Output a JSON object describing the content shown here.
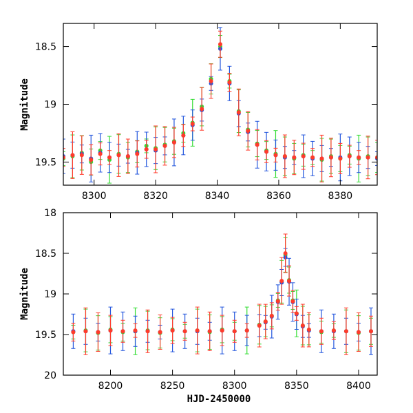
{
  "chart_data": [
    {
      "type": "scatter",
      "title": "",
      "xlabel": "",
      "ylabel": "Magnitude",
      "xlim": [
        8290,
        8392
      ],
      "ylim": [
        19.7,
        18.3
      ],
      "y_inverted": true,
      "x_ticks": [
        8300,
        8320,
        8340,
        8360,
        8380
      ],
      "x_tick_labels": [
        "8300",
        "8320",
        "8340",
        "8360",
        "8380"
      ],
      "y_ticks": [
        18.5,
        19,
        19.5
      ],
      "y_tick_labels": [
        "18.5",
        "19",
        "19.5"
      ],
      "grid": false,
      "legend": "none",
      "error_bars": true,
      "series": [
        {
          "color": "#33dd33",
          "x": [
            8290,
            8293,
            8296,
            8299,
            8302,
            8305,
            8308,
            8311,
            8314,
            8317,
            8320,
            8323,
            8326,
            8329,
            8332,
            8335,
            8338,
            8341,
            8344,
            8347,
            8350,
            8353,
            8356,
            8359,
            8362,
            8365,
            8368,
            8371,
            8374,
            8377,
            8380,
            8383,
            8386,
            8389,
            8392
          ],
          "y": [
            19.47,
            19.45,
            19.42,
            19.5,
            19.4,
            19.48,
            19.43,
            19.46,
            19.41,
            19.36,
            19.38,
            19.35,
            19.32,
            19.25,
            19.16,
            19.02,
            18.78,
            18.5,
            18.8,
            19.06,
            19.22,
            19.34,
            19.4,
            19.43,
            19.45,
            19.47,
            19.44,
            19.46,
            19.48,
            19.45,
            19.47,
            19.44,
            19.47,
            19.45,
            19.46
          ]
        },
        {
          "color": "#2255dd",
          "x": [
            8290,
            8293,
            8296,
            8299,
            8302,
            8305,
            8308,
            8311,
            8314,
            8317,
            8320,
            8323,
            8326,
            8329,
            8332,
            8335,
            8338,
            8341,
            8344,
            8347,
            8350,
            8353,
            8356,
            8359,
            8362,
            8365,
            8368,
            8371,
            8374,
            8377,
            8380,
            8383,
            8386,
            8389,
            8392
          ],
          "y": [
            19.45,
            19.44,
            19.43,
            19.47,
            19.42,
            19.46,
            19.44,
            19.45,
            19.42,
            19.39,
            19.4,
            19.36,
            19.33,
            19.27,
            19.18,
            19.05,
            18.82,
            18.52,
            18.82,
            19.08,
            19.24,
            19.35,
            19.41,
            19.44,
            19.46,
            19.46,
            19.45,
            19.47,
            19.47,
            19.46,
            19.46,
            19.45,
            19.46,
            19.46,
            19.47
          ]
        },
        {
          "color": "#ff3b2b",
          "x": [
            8290,
            8293,
            8296,
            8299,
            8302,
            8305,
            8308,
            8311,
            8314,
            8317,
            8320,
            8323,
            8326,
            8329,
            8332,
            8335,
            8338,
            8341,
            8344,
            8347,
            8350,
            8353,
            8356,
            8359,
            8362,
            8365,
            8368,
            8371,
            8374,
            8377,
            8380,
            8383,
            8386,
            8389,
            8392
          ],
          "y": [
            19.46,
            19.44,
            19.44,
            19.48,
            19.43,
            19.46,
            19.44,
            19.45,
            19.43,
            19.39,
            19.39,
            19.36,
            19.33,
            19.27,
            19.17,
            19.04,
            18.8,
            18.48,
            18.81,
            19.07,
            19.23,
            19.35,
            19.41,
            19.44,
            19.45,
            19.46,
            19.45,
            19.46,
            19.47,
            19.46,
            19.47,
            19.45,
            19.46,
            19.46,
            19.46
          ]
        }
      ]
    },
    {
      "type": "scatter",
      "title": "",
      "xlabel": "HJD-2450000",
      "ylabel": "Magnitude",
      "xlim": [
        8162,
        8415
      ],
      "ylim": [
        20,
        18
      ],
      "y_inverted": true,
      "x_ticks": [
        8200,
        8250,
        8300,
        8350,
        8400
      ],
      "x_tick_labels": [
        "8200",
        "8250",
        "8300",
        "8350",
        "8400"
      ],
      "y_ticks": [
        18,
        18.5,
        19,
        19.5,
        20
      ],
      "y_tick_labels": [
        "18",
        "18.5",
        "19",
        "19.5",
        "20"
      ],
      "grid": false,
      "legend": "none",
      "error_bars": true,
      "series": [
        {
          "color": "#33dd33",
          "x": [
            8170,
            8180,
            8190,
            8200,
            8210,
            8220,
            8230,
            8240,
            8250,
            8260,
            8270,
            8280,
            8290,
            8300,
            8310,
            8320,
            8325,
            8330,
            8335,
            8338,
            8341,
            8344,
            8347,
            8350,
            8355,
            8360,
            8370,
            8380,
            8390,
            8400,
            8410
          ],
          "y": [
            19.47,
            19.45,
            19.48,
            19.44,
            19.47,
            19.46,
            19.45,
            19.48,
            19.44,
            19.46,
            19.45,
            19.47,
            19.44,
            19.46,
            19.45,
            19.38,
            19.34,
            19.27,
            19.08,
            18.85,
            18.52,
            18.83,
            19.08,
            19.24,
            19.39,
            19.44,
            19.47,
            19.45,
            19.46,
            19.48,
            19.46
          ]
        },
        {
          "color": "#2255dd",
          "x": [
            8170,
            8180,
            8190,
            8200,
            8210,
            8220,
            8230,
            8240,
            8250,
            8260,
            8270,
            8280,
            8290,
            8300,
            8310,
            8320,
            8325,
            8330,
            8335,
            8338,
            8341,
            8344,
            8347,
            8350,
            8355,
            8360,
            8370,
            8380,
            8390,
            8400,
            8410
          ],
          "y": [
            19.46,
            19.46,
            19.47,
            19.45,
            19.46,
            19.46,
            19.46,
            19.47,
            19.45,
            19.46,
            19.46,
            19.46,
            19.45,
            19.46,
            19.45,
            19.39,
            19.35,
            19.28,
            19.1,
            18.86,
            18.55,
            18.85,
            19.1,
            19.25,
            19.4,
            19.45,
            19.46,
            19.46,
            19.46,
            19.47,
            19.46
          ]
        },
        {
          "color": "#ff3b2b",
          "x": [
            8170,
            8180,
            8190,
            8200,
            8210,
            8220,
            8230,
            8240,
            8250,
            8260,
            8270,
            8280,
            8290,
            8300,
            8310,
            8320,
            8325,
            8330,
            8335,
            8338,
            8341,
            8344,
            8347,
            8350,
            8355,
            8360,
            8370,
            8380,
            8390,
            8400,
            8410
          ],
          "y": [
            19.47,
            19.46,
            19.47,
            19.45,
            19.46,
            19.45,
            19.46,
            19.47,
            19.45,
            19.46,
            19.45,
            19.46,
            19.45,
            19.46,
            19.45,
            19.39,
            19.34,
            19.27,
            19.09,
            18.84,
            18.5,
            18.84,
            19.09,
            19.24,
            19.39,
            19.44,
            19.46,
            19.45,
            19.46,
            19.47,
            19.46
          ]
        }
      ]
    }
  ]
}
